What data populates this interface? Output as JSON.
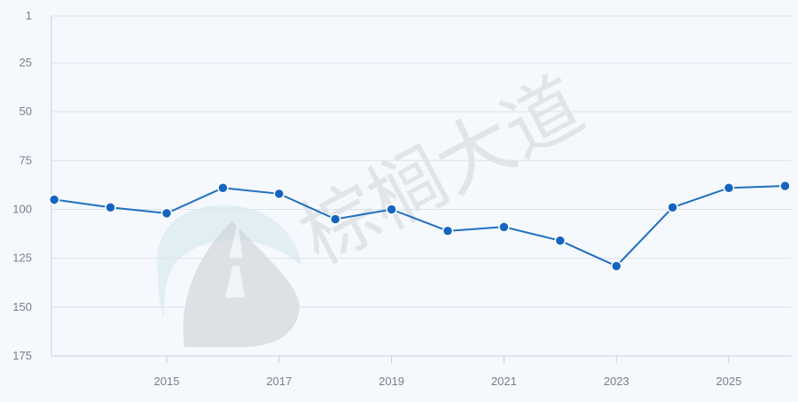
{
  "watermark": {
    "text": "棕榈大道"
  },
  "chart_data": {
    "type": "line",
    "title": "",
    "xlabel": "",
    "ylabel": "",
    "y_inverted": true,
    "ylim": [
      1,
      175
    ],
    "yticks": [
      1,
      25,
      50,
      75,
      100,
      125,
      150,
      175
    ],
    "xlim": [
      2012.95,
      2026.12
    ],
    "xticks": [
      2015,
      2017,
      2019,
      2021,
      2023,
      2025
    ],
    "grid": "horizontal",
    "legend": "none",
    "colors": {
      "line": "#1f6fc0",
      "point": "#1565c0",
      "grid": "#dde3ea",
      "background": "#f5f8fd"
    },
    "series": [
      {
        "x": [
          2013,
          2014,
          2015,
          2016,
          2017,
          2018,
          2019,
          2020,
          2021,
          2022,
          2023,
          2024,
          2025,
          2026
        ],
        "values": [
          95,
          99,
          102,
          89,
          92,
          105,
          100,
          111,
          109,
          116,
          129,
          99,
          89,
          88
        ]
      }
    ]
  }
}
